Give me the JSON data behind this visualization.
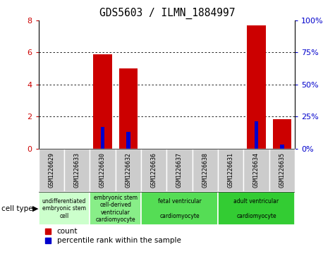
{
  "title": "GDS5603 / ILMN_1884997",
  "samples": [
    "GSM1226629",
    "GSM1226633",
    "GSM1226630",
    "GSM1226632",
    "GSM1226636",
    "GSM1226637",
    "GSM1226638",
    "GSM1226631",
    "GSM1226634",
    "GSM1226635"
  ],
  "count_values": [
    0,
    0,
    5.9,
    5.0,
    0,
    0,
    0,
    0,
    7.7,
    1.85
  ],
  "percentile_values": [
    0,
    0,
    17,
    13,
    0,
    0,
    0,
    0,
    21,
    3
  ],
  "ylim_left": [
    0,
    8
  ],
  "ylim_right": [
    0,
    100
  ],
  "yticks_left": [
    0,
    2,
    4,
    6,
    8
  ],
  "yticks_right": [
    0,
    25,
    50,
    75,
    100
  ],
  "ytick_labels_right": [
    "0%",
    "25%",
    "50%",
    "75%",
    "100%"
  ],
  "count_color": "#cc0000",
  "percentile_color": "#0000cc",
  "cell_types": [
    {
      "label": "undifferentiated\nembryonic stem\ncell",
      "start": 0,
      "end": 2,
      "color": "#ccffcc"
    },
    {
      "label": "embryonic stem\ncell-derived\nventricular\ncardiomyocyte",
      "start": 2,
      "end": 4,
      "color": "#88ee88"
    },
    {
      "label": "fetal ventricular\n\ncardiomyocyte",
      "start": 4,
      "end": 7,
      "color": "#55dd55"
    },
    {
      "label": "adult ventricular\n\ncardiomyocyte",
      "start": 7,
      "end": 10,
      "color": "#33cc33"
    }
  ],
  "legend_count_label": "count",
  "legend_percentile_label": "percentile rank within the sample",
  "cell_type_label": "cell type",
  "tick_label_bg": "#cccccc",
  "bar_width": 0.45
}
